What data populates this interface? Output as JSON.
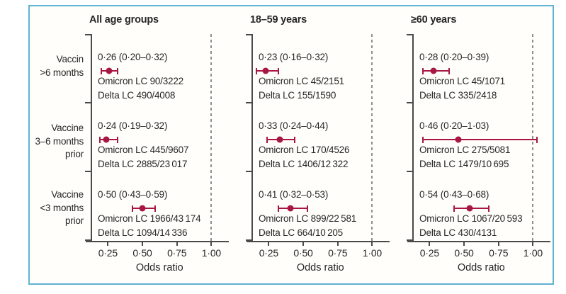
{
  "styles": {
    "accent_color": "#a81743",
    "frame_border_color": "#5fb3d4",
    "axis_color": "#4a4a4a",
    "reference_line_color": "#8f8f8f"
  },
  "figure": {
    "row_labels": [
      {
        "lines": [
          "Vaccin",
          ">6 months"
        ]
      },
      {
        "lines": [
          "Vaccine",
          "3–6 months",
          "prior"
        ]
      },
      {
        "lines": [
          "Vaccine",
          "<3 months",
          "prior"
        ]
      }
    ]
  },
  "chart_data": [
    {
      "type": "scatter",
      "variant": "forest-plot-horizontal-error-bars",
      "title": "All age groups",
      "xlabel": "Odds ratio",
      "xlim": [
        0.125,
        1.075
      ],
      "x_ticks": [
        0.25,
        0.5,
        0.75,
        1.0
      ],
      "x_tick_labels": [
        "0·25",
        "0·50",
        "0·75",
        "1·00"
      ],
      "reference_line": 1.0,
      "grid": false,
      "rows": [
        {
          "group": "Vaccin >6 months",
          "or": 0.26,
          "ci_low": 0.2,
          "ci_high": 0.32,
          "estimate_label": "0·26 (0·20–0·32)",
          "omicron_label": "Omicron LC 90/3222",
          "delta_label": "Delta LC 490/4008"
        },
        {
          "group": "Vaccine 3–6 months prior",
          "or": 0.24,
          "ci_low": 0.19,
          "ci_high": 0.32,
          "estimate_label": "0·24 (0·19–0·32)",
          "omicron_label": "Omicron LC 445/9607",
          "delta_label": "Delta LC 2885/23 017"
        },
        {
          "group": "Vaccine <3 months prior",
          "or": 0.5,
          "ci_low": 0.43,
          "ci_high": 0.59,
          "estimate_label": "0·50 (0·43–0·59)",
          "omicron_label": "Omicron LC 1966/43 174",
          "delta_label": "Delta LC 1094/14 336"
        }
      ]
    },
    {
      "type": "scatter",
      "variant": "forest-plot-horizontal-error-bars",
      "title": "18–59 years",
      "xlabel": "Odds ratio",
      "xlim": [
        0.125,
        1.075
      ],
      "x_ticks": [
        0.25,
        0.5,
        0.75,
        1.0
      ],
      "x_tick_labels": [
        "0·25",
        "0·50",
        "0·75",
        "1·00"
      ],
      "reference_line": 1.0,
      "grid": false,
      "rows": [
        {
          "group": "Vaccin >6 months",
          "or": 0.23,
          "ci_low": 0.16,
          "ci_high": 0.32,
          "estimate_label": "0·23 (0·16–0·32)",
          "omicron_label": "Omicron LC 45/2151",
          "delta_label": "Delta LC 155/1590"
        },
        {
          "group": "Vaccine 3–6 months prior",
          "or": 0.33,
          "ci_low": 0.24,
          "ci_high": 0.44,
          "estimate_label": "0·33 (0·24–0·44)",
          "omicron_label": "Omicron LC 170/4526",
          "delta_label": "Delta LC 1406/12 322"
        },
        {
          "group": "Vaccine <3 months prior",
          "or": 0.41,
          "ci_low": 0.32,
          "ci_high": 0.53,
          "estimate_label": "0·41 (0·32–0·53)",
          "omicron_label": "Omicron LC 899/22 581",
          "delta_label": "Delta LC 664/10 205"
        }
      ]
    },
    {
      "type": "scatter",
      "variant": "forest-plot-horizontal-error-bars",
      "title": "≥60 years",
      "xlabel": "Odds ratio",
      "xlim": [
        0.125,
        1.075
      ],
      "x_ticks": [
        0.25,
        0.5,
        0.75,
        1.0
      ],
      "x_tick_labels": [
        "0·25",
        "0·50",
        "0·75",
        "1·00"
      ],
      "reference_line": 1.0,
      "grid": false,
      "rows": [
        {
          "group": "Vaccin >6 months",
          "or": 0.28,
          "ci_low": 0.2,
          "ci_high": 0.39,
          "estimate_label": "0·28 (0·20–0·39)",
          "omicron_label": "Omicron LC 45/1071",
          "delta_label": "Delta LC 335/2418"
        },
        {
          "group": "Vaccine 3–6 months prior",
          "or": 0.46,
          "ci_low": 0.2,
          "ci_high": 1.03,
          "estimate_label": "0·46 (0·20–1·03)",
          "omicron_label": "Omicron LC 275/5081",
          "delta_label": "Delta LC 1479/10 695"
        },
        {
          "group": "Vaccine <3 months prior",
          "or": 0.54,
          "ci_low": 0.43,
          "ci_high": 0.68,
          "estimate_label": "0·54 (0·43–0·68)",
          "omicron_label": "Omicron LC 1067/20 593",
          "delta_label": "Delta LC 430/4131"
        }
      ]
    }
  ]
}
